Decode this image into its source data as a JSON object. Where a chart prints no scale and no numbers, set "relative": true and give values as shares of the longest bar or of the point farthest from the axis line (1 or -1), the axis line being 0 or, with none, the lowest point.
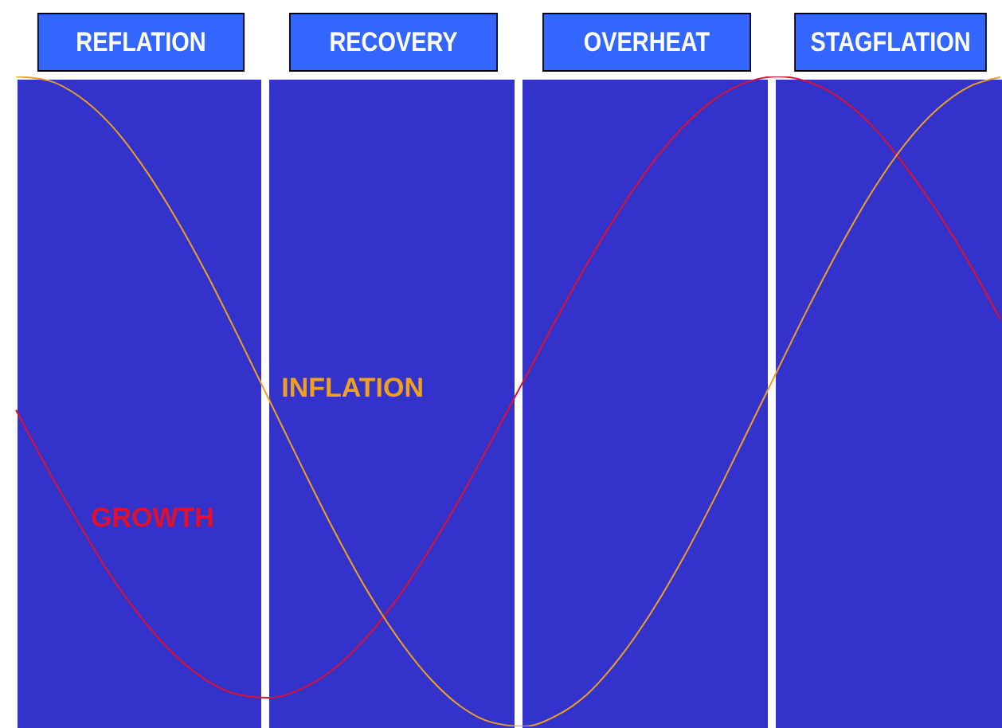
{
  "chart_data": {
    "type": "line",
    "relative": true,
    "annotations": [
      "REFLATION",
      "RECOVERY",
      "OVERHEAT",
      "STAGFLATION"
    ],
    "categories": [
      null,
      null,
      null,
      null,
      null,
      null,
      null,
      null,
      null,
      null,
      null,
      null,
      null,
      null,
      null,
      null,
      null,
      null,
      null,
      null,
      null,
      null,
      null,
      null,
      null,
      null,
      null,
      null,
      null,
      null,
      null,
      null
    ],
    "series": [
      {
        "name": "GROWTH",
        "color": "#e0102e",
        "values": [
          0.487,
          0.396,
          0.311,
          0.231,
          0.164,
          0.11,
          0.071,
          0.049,
          0.044,
          0.058,
          0.088,
          0.135,
          0.196,
          0.27,
          0.352,
          0.442,
          0.533,
          0.625,
          0.713,
          0.793,
          0.864,
          0.922,
          0.965,
          0.991,
          1.0,
          0.991,
          0.965,
          0.922,
          0.862,
          0.793,
          0.714,
          0.626
        ]
      },
      {
        "name": "INFLATION",
        "color": "#f0a020",
        "values": [
          1.0,
          0.994,
          0.969,
          0.925,
          0.862,
          0.785,
          0.697,
          0.6,
          0.5,
          0.4,
          0.303,
          0.214,
          0.138,
          0.076,
          0.031,
          0.006,
          0,
          0.016,
          0.05,
          0.105,
          0.175,
          0.258,
          0.351,
          0.45,
          0.55,
          0.649,
          0.742,
          0.826,
          0.896,
          0.949,
          0.984,
          0.999
        ]
      }
    ]
  }
}
